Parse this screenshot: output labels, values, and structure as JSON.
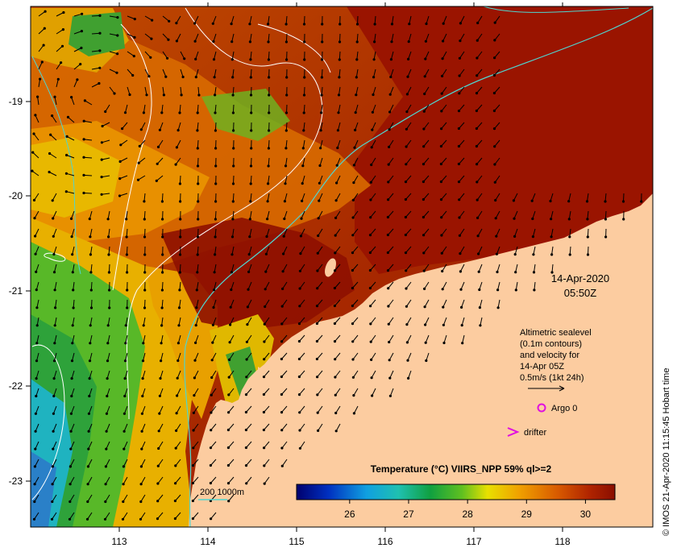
{
  "map": {
    "date": "14-Apr-2020",
    "time": "05:50Z",
    "lon_ticks": [
      "113",
      "114",
      "115",
      "116",
      "117",
      "118"
    ],
    "lat_ticks": [
      "-19",
      "-20",
      "-21",
      "-22",
      "-23"
    ],
    "legend_lines": [
      "Altimetric sealevel",
      "(0.1m contours)",
      "and velocity for",
      "14-Apr 05Z",
      "0.5m/s (1kt 24h)"
    ],
    "argo_label": "Argo 0",
    "drifter_label": "drifter",
    "isobath_label": "200  1000m",
    "colorbar": {
      "title": "Temperature (°C) VIIRS_NPP 59% ql>=2",
      "ticks": [
        "26",
        "27",
        "28",
        "29",
        "30"
      ],
      "range": [
        25.1,
        30.5
      ]
    },
    "side_text": "© IMOS 21-Apr-2020 11:15:45 Hobart time",
    "colors": {
      "land": "#fccca0",
      "hot": "#9a1400",
      "warm": "#c84a00",
      "orange": "#e08800",
      "yellow": "#e8c800",
      "green": "#2ea23a",
      "cyan": "#1fb3c0",
      "isobath": "#4fd6d0"
    }
  }
}
